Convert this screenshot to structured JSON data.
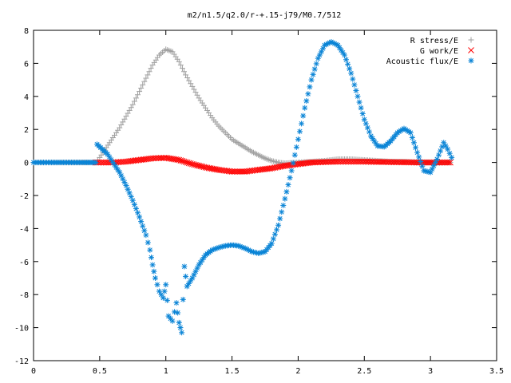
{
  "chart_data": {
    "type": "scatter",
    "title": "m2/n1.5/q2.0/r-+.15-j79/M0.7/512",
    "xlabel": "",
    "ylabel": "",
    "xlim": [
      0,
      3.5
    ],
    "ylim": [
      -12,
      8
    ],
    "x_ticks": [
      "0",
      "0.5",
      "1",
      "1.5",
      "2",
      "2.5",
      "3",
      "3.5"
    ],
    "y_ticks": [
      "8",
      "6",
      "4",
      "2",
      "0",
      "-2",
      "-4",
      "-6",
      "-8",
      "-10",
      "-12"
    ],
    "grid": false,
    "legend_position": "top-right",
    "series": [
      {
        "name": "R stress/E",
        "color": "#a0a0a0",
        "marker": "plus",
        "points": [
          [
            0.0,
            0.0
          ],
          [
            0.47,
            0.0
          ],
          [
            0.5,
            0.3
          ],
          [
            0.55,
            0.9
          ],
          [
            0.6,
            1.5
          ],
          [
            0.65,
            2.1
          ],
          [
            0.7,
            2.8
          ],
          [
            0.75,
            3.5
          ],
          [
            0.8,
            4.3
          ],
          [
            0.85,
            5.1
          ],
          [
            0.9,
            5.9
          ],
          [
            0.95,
            6.5
          ],
          [
            1.0,
            6.85
          ],
          [
            1.05,
            6.7
          ],
          [
            1.1,
            6.1
          ],
          [
            1.15,
            5.3
          ],
          [
            1.2,
            4.6
          ],
          [
            1.25,
            3.9
          ],
          [
            1.3,
            3.3
          ],
          [
            1.35,
            2.7
          ],
          [
            1.4,
            2.2
          ],
          [
            1.45,
            1.8
          ],
          [
            1.5,
            1.4
          ],
          [
            1.55,
            1.15
          ],
          [
            1.6,
            0.9
          ],
          [
            1.65,
            0.65
          ],
          [
            1.7,
            0.45
          ],
          [
            1.75,
            0.25
          ],
          [
            1.8,
            0.1
          ],
          [
            1.85,
            0.0
          ],
          [
            1.9,
            -0.05
          ],
          [
            2.0,
            0.0
          ],
          [
            2.1,
            0.05
          ],
          [
            2.2,
            0.1
          ],
          [
            2.3,
            0.2
          ],
          [
            2.4,
            0.2
          ],
          [
            2.5,
            0.15
          ],
          [
            2.6,
            0.1
          ],
          [
            2.7,
            0.05
          ],
          [
            2.8,
            0.05
          ],
          [
            2.9,
            0.0
          ],
          [
            3.0,
            0.0
          ],
          [
            3.15,
            0.0
          ]
        ]
      },
      {
        "name": "G work/E",
        "color": "#ff0000",
        "marker": "cross",
        "points": [
          [
            0.47,
            0.0
          ],
          [
            0.6,
            0.0
          ],
          [
            0.7,
            0.05
          ],
          [
            0.8,
            0.15
          ],
          [
            0.9,
            0.25
          ],
          [
            1.0,
            0.28
          ],
          [
            1.1,
            0.15
          ],
          [
            1.2,
            -0.1
          ],
          [
            1.3,
            -0.3
          ],
          [
            1.4,
            -0.45
          ],
          [
            1.5,
            -0.55
          ],
          [
            1.6,
            -0.55
          ],
          [
            1.7,
            -0.45
          ],
          [
            1.8,
            -0.35
          ],
          [
            1.9,
            -0.2
          ],
          [
            2.0,
            -0.1
          ],
          [
            2.1,
            0.0
          ],
          [
            2.3,
            0.05
          ],
          [
            2.5,
            0.05
          ],
          [
            2.7,
            0.02
          ],
          [
            2.9,
            0.0
          ],
          [
            3.15,
            0.0
          ]
        ]
      },
      {
        "name": "Acoustic flux/E",
        "color": "#0a84d6",
        "marker": "star",
        "points": [
          [
            0.0,
            0.0
          ],
          [
            0.1,
            0.0
          ],
          [
            0.2,
            0.0
          ],
          [
            0.3,
            0.0
          ],
          [
            0.4,
            0.0
          ],
          [
            0.47,
            0.0
          ],
          [
            0.48,
            1.1
          ],
          [
            0.52,
            0.8
          ],
          [
            0.56,
            0.5
          ],
          [
            0.6,
            0.0
          ],
          [
            0.65,
            -0.6
          ],
          [
            0.7,
            -1.4
          ],
          [
            0.75,
            -2.3
          ],
          [
            0.8,
            -3.3
          ],
          [
            0.85,
            -4.4
          ],
          [
            0.88,
            -5.3
          ],
          [
            0.9,
            -6.2
          ],
          [
            0.92,
            -7.0
          ],
          [
            0.95,
            -7.8
          ],
          [
            0.98,
            -8.2
          ],
          [
            1.0,
            -7.4
          ],
          [
            1.02,
            -9.3
          ],
          [
            1.05,
            -9.6
          ],
          [
            1.08,
            -8.5
          ],
          [
            1.1,
            -9.7
          ],
          [
            1.12,
            -10.3
          ],
          [
            1.14,
            -6.3
          ],
          [
            1.16,
            -7.5
          ],
          [
            1.2,
            -7.0
          ],
          [
            1.25,
            -6.2
          ],
          [
            1.3,
            -5.6
          ],
          [
            1.35,
            -5.3
          ],
          [
            1.4,
            -5.15
          ],
          [
            1.45,
            -5.05
          ],
          [
            1.5,
            -5.0
          ],
          [
            1.55,
            -5.05
          ],
          [
            1.6,
            -5.2
          ],
          [
            1.65,
            -5.4
          ],
          [
            1.7,
            -5.5
          ],
          [
            1.75,
            -5.4
          ],
          [
            1.8,
            -4.9
          ],
          [
            1.85,
            -3.8
          ],
          [
            1.9,
            -2.2
          ],
          [
            1.95,
            -0.5
          ],
          [
            2.0,
            1.4
          ],
          [
            2.05,
            3.3
          ],
          [
            2.1,
            5.0
          ],
          [
            2.15,
            6.3
          ],
          [
            2.2,
            7.1
          ],
          [
            2.25,
            7.3
          ],
          [
            2.3,
            7.1
          ],
          [
            2.35,
            6.5
          ],
          [
            2.4,
            5.4
          ],
          [
            2.45,
            4.0
          ],
          [
            2.5,
            2.6
          ],
          [
            2.55,
            1.6
          ],
          [
            2.6,
            1.0
          ],
          [
            2.65,
            0.95
          ],
          [
            2.7,
            1.3
          ],
          [
            2.75,
            1.8
          ],
          [
            2.8,
            2.05
          ],
          [
            2.85,
            1.8
          ],
          [
            2.9,
            0.6
          ],
          [
            2.95,
            -0.5
          ],
          [
            3.0,
            -0.6
          ],
          [
            3.05,
            0.2
          ],
          [
            3.1,
            1.2
          ],
          [
            3.13,
            0.8
          ],
          [
            3.16,
            0.3
          ]
        ]
      }
    ]
  }
}
